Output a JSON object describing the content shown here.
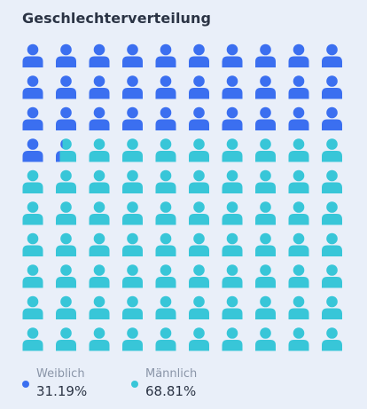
{
  "title": "Geschlechterverteilung",
  "chart_data": {
    "type": "pictograph",
    "icon": "person-icon",
    "grid": {
      "rows": 10,
      "cols": 10
    },
    "series": [
      {
        "name": "Weiblich",
        "value": 31.19,
        "label": "31.19%",
        "color": "#3b6ff0",
        "dark": "#2957d6"
      },
      {
        "name": "Männlich",
        "value": 68.81,
        "label": "68.81%",
        "color": "#38c6d8",
        "dark": "#22aabd"
      }
    ]
  }
}
